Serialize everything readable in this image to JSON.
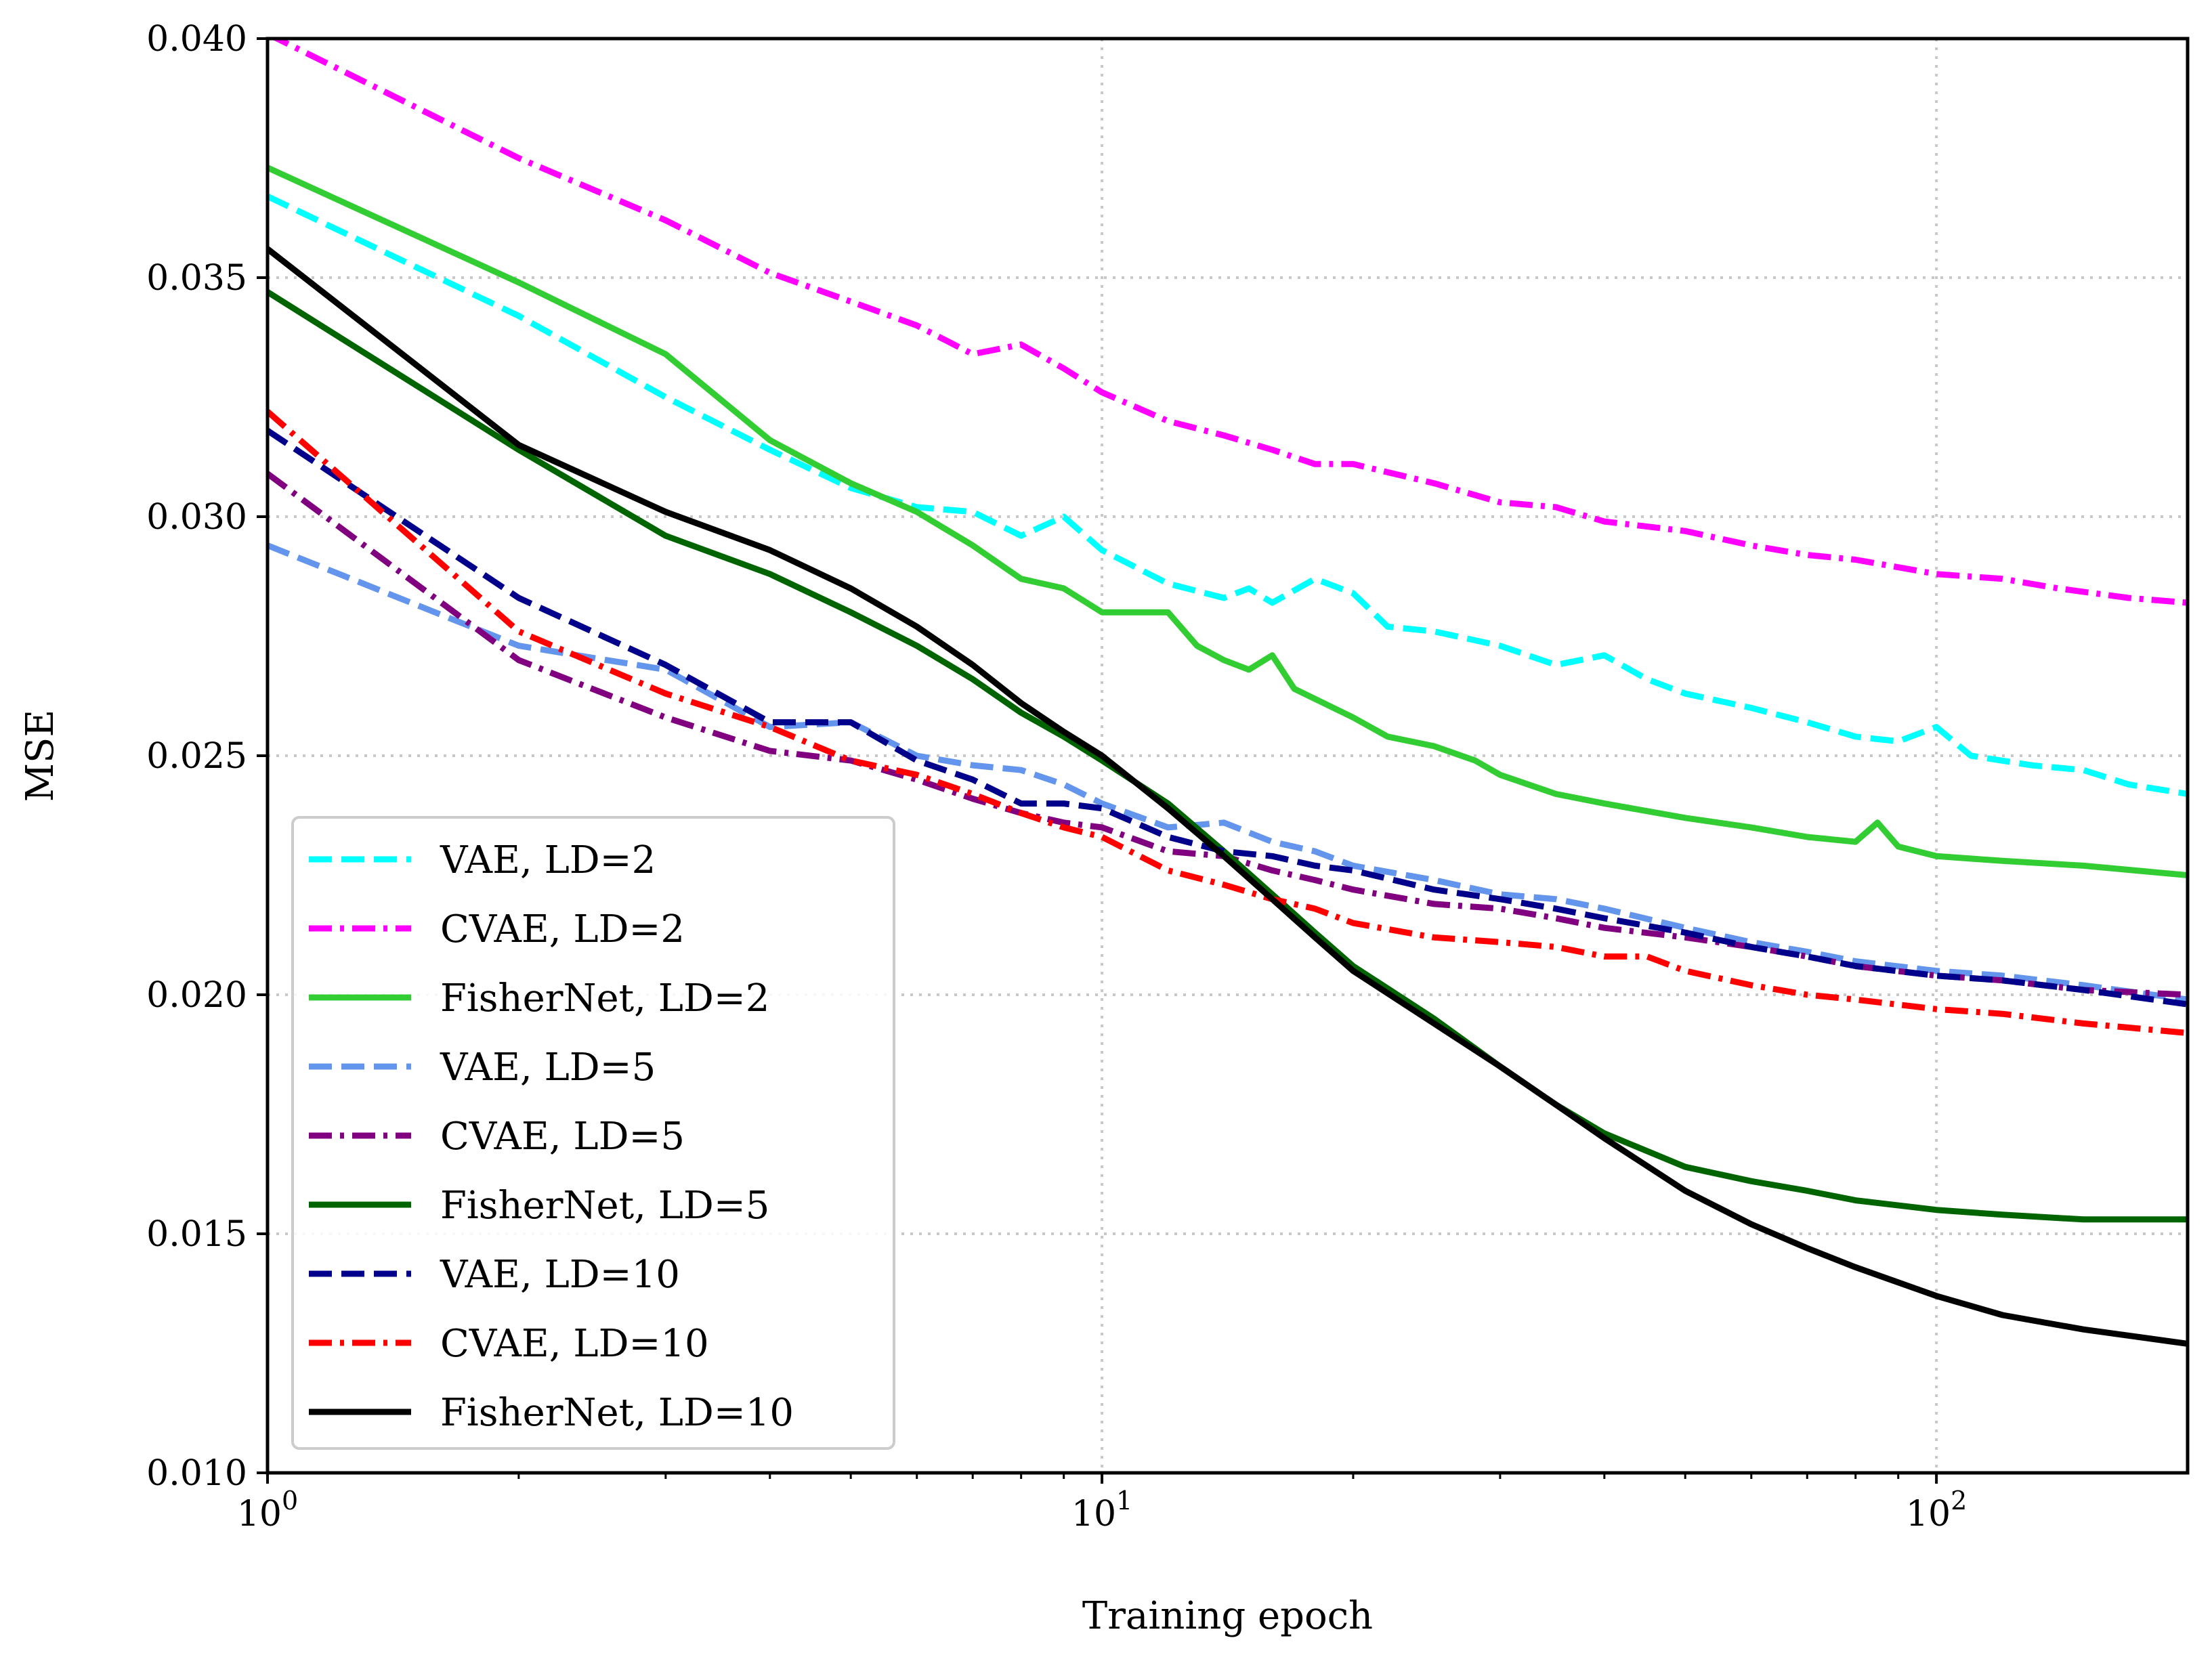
{
  "chart_data": {
    "type": "line",
    "title": "",
    "xlabel": "Training epoch",
    "ylabel": "MSE",
    "xscale": "log",
    "xlim": [
      1,
      200
    ],
    "ylim": [
      0.01,
      0.04
    ],
    "grid": true,
    "legend_position": "lower-left",
    "x_ticks": [
      {
        "value": 1,
        "base": "10",
        "exp": "0"
      },
      {
        "value": 10,
        "base": "10",
        "exp": "1"
      },
      {
        "value": 100,
        "base": "10",
        "exp": "2"
      }
    ],
    "y_ticks": [
      {
        "value": 0.01,
        "label": "0.010"
      },
      {
        "value": 0.015,
        "label": "0.015"
      },
      {
        "value": 0.02,
        "label": "0.020"
      },
      {
        "value": 0.025,
        "label": "0.025"
      },
      {
        "value": 0.03,
        "label": "0.030"
      },
      {
        "value": 0.035,
        "label": "0.035"
      },
      {
        "value": 0.04,
        "label": "0.040"
      }
    ],
    "series": [
      {
        "name": "VAE, LD=2",
        "color": "#00FFFF",
        "dash": "dashed",
        "points": [
          [
            1,
            0.0367
          ],
          [
            2,
            0.0342
          ],
          [
            3,
            0.0325
          ],
          [
            4,
            0.0314
          ],
          [
            5,
            0.0306
          ],
          [
            6,
            0.0302
          ],
          [
            7,
            0.0301
          ],
          [
            8,
            0.0296
          ],
          [
            9,
            0.03
          ],
          [
            10,
            0.0293
          ],
          [
            12,
            0.0286
          ],
          [
            14,
            0.0283
          ],
          [
            15,
            0.0285
          ],
          [
            16,
            0.0282
          ],
          [
            18,
            0.0287
          ],
          [
            20,
            0.0284
          ],
          [
            22,
            0.0277
          ],
          [
            25,
            0.0276
          ],
          [
            30,
            0.0273
          ],
          [
            35,
            0.0269
          ],
          [
            40,
            0.0271
          ],
          [
            45,
            0.0266
          ],
          [
            50,
            0.0263
          ],
          [
            60,
            0.026
          ],
          [
            70,
            0.0257
          ],
          [
            80,
            0.0254
          ],
          [
            90,
            0.0253
          ],
          [
            100,
            0.0256
          ],
          [
            110,
            0.025
          ],
          [
            130,
            0.0248
          ],
          [
            150,
            0.0247
          ],
          [
            170,
            0.0244
          ],
          [
            200,
            0.0242
          ]
        ]
      },
      {
        "name": "CVAE, LD=2",
        "color": "#FF00FF",
        "dash": "dashdot",
        "points": [
          [
            1,
            0.0401
          ],
          [
            2,
            0.0375
          ],
          [
            3,
            0.0362
          ],
          [
            4,
            0.0351
          ],
          [
            5,
            0.0345
          ],
          [
            6,
            0.034
          ],
          [
            7,
            0.0334
          ],
          [
            8,
            0.0336
          ],
          [
            9,
            0.0331
          ],
          [
            10,
            0.0326
          ],
          [
            12,
            0.032
          ],
          [
            14,
            0.0317
          ],
          [
            16,
            0.0314
          ],
          [
            18,
            0.0311
          ],
          [
            20,
            0.0311
          ],
          [
            25,
            0.0307
          ],
          [
            30,
            0.0303
          ],
          [
            35,
            0.0302
          ],
          [
            40,
            0.0299
          ],
          [
            50,
            0.0297
          ],
          [
            60,
            0.0294
          ],
          [
            70,
            0.0292
          ],
          [
            80,
            0.0291
          ],
          [
            100,
            0.0288
          ],
          [
            120,
            0.0287
          ],
          [
            140,
            0.0285
          ],
          [
            170,
            0.0283
          ],
          [
            200,
            0.0282
          ]
        ]
      },
      {
        "name": "FisherNet, LD=2",
        "color": "#32CD32",
        "dash": "solid",
        "points": [
          [
            1,
            0.0373
          ],
          [
            2,
            0.0349
          ],
          [
            3,
            0.0334
          ],
          [
            4,
            0.0316
          ],
          [
            5,
            0.0307
          ],
          [
            6,
            0.0301
          ],
          [
            7,
            0.0294
          ],
          [
            8,
            0.0287
          ],
          [
            9,
            0.0285
          ],
          [
            10,
            0.028
          ],
          [
            12,
            0.028
          ],
          [
            13,
            0.0273
          ],
          [
            14,
            0.027
          ],
          [
            15,
            0.0268
          ],
          [
            16,
            0.0271
          ],
          [
            17,
            0.0264
          ],
          [
            20,
            0.0258
          ],
          [
            22,
            0.0254
          ],
          [
            25,
            0.0252
          ],
          [
            28,
            0.0249
          ],
          [
            30,
            0.0246
          ],
          [
            35,
            0.0242
          ],
          [
            40,
            0.024
          ],
          [
            50,
            0.0237
          ],
          [
            60,
            0.0235
          ],
          [
            70,
            0.0233
          ],
          [
            80,
            0.0232
          ],
          [
            85,
            0.0236
          ],
          [
            90,
            0.0231
          ],
          [
            100,
            0.0229
          ],
          [
            120,
            0.0228
          ],
          [
            150,
            0.0227
          ],
          [
            200,
            0.0225
          ]
        ]
      },
      {
        "name": "VAE, LD=5",
        "color": "#6495ED",
        "dash": "dashed",
        "points": [
          [
            1,
            0.0294
          ],
          [
            2,
            0.0273
          ],
          [
            3,
            0.0268
          ],
          [
            4,
            0.0256
          ],
          [
            5,
            0.0257
          ],
          [
            6,
            0.025
          ],
          [
            7,
            0.0248
          ],
          [
            8,
            0.0247
          ],
          [
            9,
            0.0244
          ],
          [
            10,
            0.024
          ],
          [
            12,
            0.0235
          ],
          [
            14,
            0.0236
          ],
          [
            16,
            0.0232
          ],
          [
            18,
            0.023
          ],
          [
            20,
            0.0227
          ],
          [
            25,
            0.0224
          ],
          [
            30,
            0.0221
          ],
          [
            35,
            0.022
          ],
          [
            40,
            0.0218
          ],
          [
            50,
            0.0214
          ],
          [
            60,
            0.0211
          ],
          [
            70,
            0.0209
          ],
          [
            80,
            0.0207
          ],
          [
            100,
            0.0205
          ],
          [
            120,
            0.0204
          ],
          [
            150,
            0.0202
          ],
          [
            200,
            0.0199
          ]
        ]
      },
      {
        "name": "CVAE, LD=5",
        "color": "#800080",
        "dash": "dashdot",
        "points": [
          [
            1,
            0.0309
          ],
          [
            2,
            0.027
          ],
          [
            3,
            0.0258
          ],
          [
            4,
            0.0251
          ],
          [
            5,
            0.0249
          ],
          [
            6,
            0.0245
          ],
          [
            7,
            0.0241
          ],
          [
            8,
            0.0238
          ],
          [
            9,
            0.0236
          ],
          [
            10,
            0.0235
          ],
          [
            12,
            0.023
          ],
          [
            14,
            0.0229
          ],
          [
            16,
            0.0226
          ],
          [
            18,
            0.0224
          ],
          [
            20,
            0.0222
          ],
          [
            25,
            0.0219
          ],
          [
            30,
            0.0218
          ],
          [
            35,
            0.0216
          ],
          [
            40,
            0.0214
          ],
          [
            50,
            0.0212
          ],
          [
            60,
            0.021
          ],
          [
            70,
            0.0208
          ],
          [
            80,
            0.0206
          ],
          [
            100,
            0.0204
          ],
          [
            120,
            0.0203
          ],
          [
            150,
            0.0201
          ],
          [
            200,
            0.02
          ]
        ]
      },
      {
        "name": "FisherNet, LD=5",
        "color": "#006400",
        "dash": "solid",
        "points": [
          [
            1,
            0.0347
          ],
          [
            2,
            0.0314
          ],
          [
            3,
            0.0296
          ],
          [
            4,
            0.0288
          ],
          [
            5,
            0.028
          ],
          [
            6,
            0.0273
          ],
          [
            7,
            0.0266
          ],
          [
            8,
            0.0259
          ],
          [
            9,
            0.0254
          ],
          [
            10,
            0.0249
          ],
          [
            12,
            0.024
          ],
          [
            14,
            0.023
          ],
          [
            16,
            0.0221
          ],
          [
            18,
            0.0213
          ],
          [
            20,
            0.0206
          ],
          [
            25,
            0.0195
          ],
          [
            30,
            0.0185
          ],
          [
            35,
            0.0177
          ],
          [
            40,
            0.0171
          ],
          [
            50,
            0.0164
          ],
          [
            60,
            0.0161
          ],
          [
            70,
            0.0159
          ],
          [
            80,
            0.0157
          ],
          [
            100,
            0.0155
          ],
          [
            120,
            0.0154
          ],
          [
            150,
            0.0153
          ],
          [
            200,
            0.0153
          ]
        ]
      },
      {
        "name": "VAE, LD=10",
        "color": "#00008B",
        "dash": "dashed",
        "points": [
          [
            1,
            0.0318
          ],
          [
            2,
            0.0283
          ],
          [
            3,
            0.0269
          ],
          [
            4,
            0.0257
          ],
          [
            5,
            0.0257
          ],
          [
            6,
            0.0249
          ],
          [
            7,
            0.0245
          ],
          [
            8,
            0.024
          ],
          [
            9,
            0.024
          ],
          [
            10,
            0.0239
          ],
          [
            12,
            0.0233
          ],
          [
            14,
            0.023
          ],
          [
            16,
            0.0229
          ],
          [
            18,
            0.0227
          ],
          [
            20,
            0.0226
          ],
          [
            25,
            0.0222
          ],
          [
            30,
            0.022
          ],
          [
            35,
            0.0218
          ],
          [
            40,
            0.0216
          ],
          [
            50,
            0.0213
          ],
          [
            60,
            0.021
          ],
          [
            70,
            0.0208
          ],
          [
            80,
            0.0206
          ],
          [
            100,
            0.0204
          ],
          [
            120,
            0.0203
          ],
          [
            150,
            0.0201
          ],
          [
            200,
            0.0198
          ]
        ]
      },
      {
        "name": "CVAE, LD=10",
        "color": "#FF0000",
        "dash": "dashdot",
        "points": [
          [
            1,
            0.0322
          ],
          [
            2,
            0.0276
          ],
          [
            3,
            0.0263
          ],
          [
            4,
            0.0256
          ],
          [
            5,
            0.0249
          ],
          [
            6,
            0.0246
          ],
          [
            7,
            0.0242
          ],
          [
            8,
            0.0238
          ],
          [
            9,
            0.0235
          ],
          [
            10,
            0.0233
          ],
          [
            12,
            0.0226
          ],
          [
            14,
            0.0223
          ],
          [
            16,
            0.022
          ],
          [
            18,
            0.0218
          ],
          [
            20,
            0.0215
          ],
          [
            25,
            0.0212
          ],
          [
            30,
            0.0211
          ],
          [
            35,
            0.021
          ],
          [
            40,
            0.0208
          ],
          [
            45,
            0.0208
          ],
          [
            50,
            0.0205
          ],
          [
            60,
            0.0202
          ],
          [
            70,
            0.02
          ],
          [
            80,
            0.0199
          ],
          [
            100,
            0.0197
          ],
          [
            120,
            0.0196
          ],
          [
            150,
            0.0194
          ],
          [
            200,
            0.0192
          ]
        ]
      },
      {
        "name": "FisherNet, LD=10",
        "color": "#000000",
        "dash": "solid",
        "points": [
          [
            1,
            0.0356
          ],
          [
            2,
            0.0315
          ],
          [
            3,
            0.0301
          ],
          [
            4,
            0.0293
          ],
          [
            5,
            0.0285
          ],
          [
            6,
            0.0277
          ],
          [
            7,
            0.0269
          ],
          [
            8,
            0.0261
          ],
          [
            9,
            0.0255
          ],
          [
            10,
            0.025
          ],
          [
            12,
            0.0239
          ],
          [
            14,
            0.0229
          ],
          [
            16,
            0.022
          ],
          [
            18,
            0.0212
          ],
          [
            20,
            0.0205
          ],
          [
            25,
            0.0194
          ],
          [
            30,
            0.0185
          ],
          [
            35,
            0.0177
          ],
          [
            40,
            0.017
          ],
          [
            50,
            0.0159
          ],
          [
            60,
            0.0152
          ],
          [
            70,
            0.0147
          ],
          [
            80,
            0.0143
          ],
          [
            100,
            0.0137
          ],
          [
            120,
            0.0133
          ],
          [
            150,
            0.013
          ],
          [
            200,
            0.0127
          ]
        ]
      }
    ]
  }
}
